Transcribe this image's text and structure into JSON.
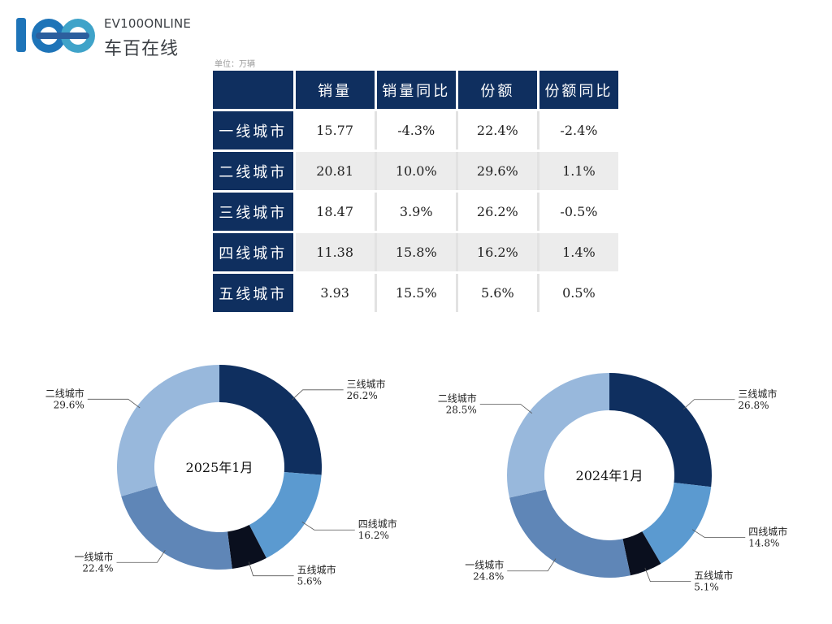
{
  "logo": {
    "mark_text": "100",
    "brand_en": "EV100ONLINE",
    "brand_cn": "车百在线",
    "colors": [
      "#1e74b8",
      "#3fa3c9",
      "#2c5f9e"
    ]
  },
  "unit_label": "单位：万辆",
  "table": {
    "headers": [
      "",
      "销量",
      "销量同比",
      "份额",
      "份额同比"
    ],
    "rows": [
      {
        "label": "一线城市",
        "cells": [
          "15.77",
          "-4.3%",
          "22.4%",
          "-2.4%"
        ]
      },
      {
        "label": "二线城市",
        "cells": [
          "20.81",
          "10.0%",
          "29.6%",
          "1.1%"
        ]
      },
      {
        "label": "三线城市",
        "cells": [
          "18.47",
          "3.9%",
          "26.2%",
          "-0.5%"
        ]
      },
      {
        "label": "四线城市",
        "cells": [
          "11.38",
          "15.8%",
          "16.2%",
          "1.4%"
        ]
      },
      {
        "label": "五线城市",
        "cells": [
          "3.93",
          "15.5%",
          "5.6%",
          "0.5%"
        ]
      }
    ],
    "header_color": "#0f2f5f"
  },
  "chart_data": [
    {
      "type": "pie",
      "donut": true,
      "center_label": "2025年1月",
      "unit": "%",
      "slices": [
        {
          "name": "三线城市",
          "value": 26.2,
          "label": "26.2%",
          "color": "#0f2f5f",
          "side": "right"
        },
        {
          "name": "四线城市",
          "value": 16.2,
          "label": "16.2%",
          "color": "#5b9ad0",
          "side": "right"
        },
        {
          "name": "五线城市",
          "value": 5.6,
          "label": "5.6%",
          "color": "#0a0f1e",
          "side": "right"
        },
        {
          "name": "一线城市",
          "value": 22.4,
          "label": "22.4%",
          "color": "#5f86b7",
          "side": "left"
        },
        {
          "name": "二线城市",
          "value": 29.6,
          "label": "29.6%",
          "color": "#98b8dc",
          "side": "left"
        }
      ]
    },
    {
      "type": "pie",
      "donut": true,
      "center_label": "2024年1月",
      "unit": "%",
      "slices": [
        {
          "name": "三线城市",
          "value": 26.8,
          "label": "26.8%",
          "color": "#0f2f5f",
          "side": "right"
        },
        {
          "name": "四线城市",
          "value": 14.8,
          "label": "14.8%",
          "color": "#5b9ad0",
          "side": "right"
        },
        {
          "name": "五线城市",
          "value": 5.1,
          "label": "5.1%",
          "color": "#0a0f1e",
          "side": "right"
        },
        {
          "name": "一线城市",
          "value": 24.8,
          "label": "24.8%",
          "color": "#5f86b7",
          "side": "left"
        },
        {
          "name": "二线城市",
          "value": 28.5,
          "label": "28.5%",
          "color": "#98b8dc",
          "side": "left"
        }
      ]
    }
  ]
}
